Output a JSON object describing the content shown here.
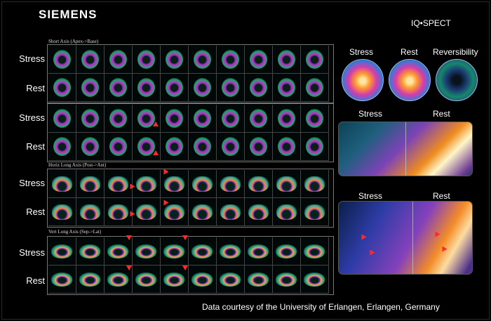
{
  "brand": "SIEMENS",
  "product": "IQ•SPECT",
  "credit": "Data courtesy of the University of Erlangen, Erlangen, Germany",
  "sections": {
    "short_axis": "Short Axis (Apex->Base)",
    "horiz_long_axis": "Horiz Long Axis (Post->Ant)",
    "vert_long_axis": "Vert Long Axis (Sep->Lat)"
  },
  "row_labels": [
    "Stress",
    "Rest"
  ],
  "right": {
    "top_labels": [
      "Stress",
      "Rest",
      "Reversibility"
    ],
    "middle_labels": [
      "Stress",
      "Rest"
    ],
    "bottom_labels": [
      "Stress",
      "Rest"
    ]
  }
}
